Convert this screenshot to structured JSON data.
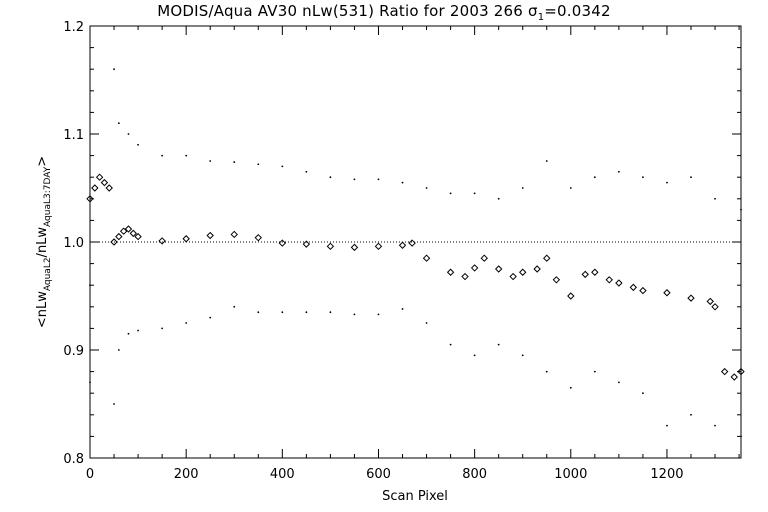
{
  "chart_data": {
    "type": "scatter",
    "title": "MODIS/Aqua AV30 nLw(531) Ratio for 2003 266",
    "title_sigma": "σ",
    "title_sigma_sub": "1",
    "title_sigma_value": "=0.0342",
    "xlabel": "Scan Pixel",
    "ylabel_parts": {
      "open": "<nLw",
      "sub1": "AquaL2",
      "mid": "/nLw",
      "sub2": "AquaL3:7DAY",
      "close": ">"
    },
    "xlim": [
      0,
      1354
    ],
    "ylim": [
      0.8,
      1.2
    ],
    "x_ticks": [
      0,
      200,
      400,
      600,
      800,
      1000,
      1200
    ],
    "x_tick_labels": [
      "0",
      "200",
      "400",
      "600",
      "800",
      "1000",
      "1200"
    ],
    "y_ticks": [
      0.8,
      0.9,
      1.0,
      1.1,
      1.2
    ],
    "y_tick_labels": [
      "0.8",
      "0.9",
      "1.0",
      "1.1",
      "1.2"
    ],
    "reference_line": 1.0,
    "grid": false,
    "series": [
      {
        "marker": "diamond",
        "points": [
          [
            0,
            1.04
          ],
          [
            10,
            1.05
          ],
          [
            20,
            1.06
          ],
          [
            30,
            1.055
          ],
          [
            40,
            1.05
          ],
          [
            50,
            1.0
          ],
          [
            60,
            1.005
          ],
          [
            70,
            1.01
          ],
          [
            80,
            1.012
          ],
          [
            90,
            1.008
          ],
          [
            100,
            1.005
          ],
          [
            150,
            1.001
          ],
          [
            200,
            1.003
          ],
          [
            250,
            1.006
          ],
          [
            300,
            1.007
          ],
          [
            350,
            1.004
          ],
          [
            400,
            0.999
          ],
          [
            450,
            0.998
          ],
          [
            500,
            0.996
          ],
          [
            550,
            0.995
          ],
          [
            600,
            0.996
          ],
          [
            650,
            0.997
          ],
          [
            670,
            0.999
          ],
          [
            700,
            0.985
          ],
          [
            750,
            0.972
          ],
          [
            780,
            0.968
          ],
          [
            800,
            0.976
          ],
          [
            820,
            0.985
          ],
          [
            850,
            0.975
          ],
          [
            880,
            0.968
          ],
          [
            900,
            0.972
          ],
          [
            930,
            0.975
          ],
          [
            950,
            0.985
          ],
          [
            970,
            0.965
          ],
          [
            1000,
            0.95
          ],
          [
            1030,
            0.97
          ],
          [
            1050,
            0.972
          ],
          [
            1080,
            0.965
          ],
          [
            1100,
            0.962
          ],
          [
            1130,
            0.958
          ],
          [
            1150,
            0.955
          ],
          [
            1200,
            0.953
          ],
          [
            1250,
            0.948
          ],
          [
            1290,
            0.945
          ],
          [
            1300,
            0.94
          ],
          [
            1320,
            0.88
          ],
          [
            1340,
            0.875
          ],
          [
            1354,
            0.88
          ]
        ]
      },
      {
        "marker": "dot",
        "points": [
          [
            0,
            0.96
          ],
          [
            50,
            1.16
          ],
          [
            60,
            1.11
          ],
          [
            80,
            1.1
          ],
          [
            100,
            1.09
          ],
          [
            150,
            1.08
          ],
          [
            200,
            1.08
          ],
          [
            250,
            1.075
          ],
          [
            300,
            1.074
          ],
          [
            350,
            1.072
          ],
          [
            400,
            1.07
          ],
          [
            450,
            1.065
          ],
          [
            500,
            1.06
          ],
          [
            550,
            1.058
          ],
          [
            600,
            1.058
          ],
          [
            650,
            1.055
          ],
          [
            700,
            1.05
          ],
          [
            750,
            1.045
          ],
          [
            800,
            1.045
          ],
          [
            850,
            1.04
          ],
          [
            900,
            1.05
          ],
          [
            950,
            1.075
          ],
          [
            1000,
            1.05
          ],
          [
            1050,
            1.06
          ],
          [
            1100,
            1.065
          ],
          [
            1150,
            1.06
          ],
          [
            1200,
            1.055
          ],
          [
            1250,
            1.06
          ],
          [
            1300,
            1.04
          ],
          [
            1354,
            1.03
          ]
        ]
      },
      {
        "marker": "dot",
        "points": [
          [
            0,
            0.87
          ],
          [
            50,
            0.85
          ],
          [
            60,
            0.9
          ],
          [
            80,
            0.915
          ],
          [
            100,
            0.918
          ],
          [
            150,
            0.92
          ],
          [
            200,
            0.925
          ],
          [
            250,
            0.93
          ],
          [
            300,
            0.94
          ],
          [
            350,
            0.935
          ],
          [
            400,
            0.935
          ],
          [
            450,
            0.935
          ],
          [
            500,
            0.935
          ],
          [
            550,
            0.933
          ],
          [
            600,
            0.933
          ],
          [
            650,
            0.938
          ],
          [
            700,
            0.925
          ],
          [
            750,
            0.905
          ],
          [
            800,
            0.895
          ],
          [
            850,
            0.905
          ],
          [
            900,
            0.895
          ],
          [
            950,
            0.88
          ],
          [
            1000,
            0.865
          ],
          [
            1050,
            0.88
          ],
          [
            1100,
            0.87
          ],
          [
            1150,
            0.86
          ],
          [
            1200,
            0.83
          ],
          [
            1250,
            0.84
          ],
          [
            1300,
            0.83
          ],
          [
            1354,
            0.82
          ]
        ]
      }
    ]
  }
}
